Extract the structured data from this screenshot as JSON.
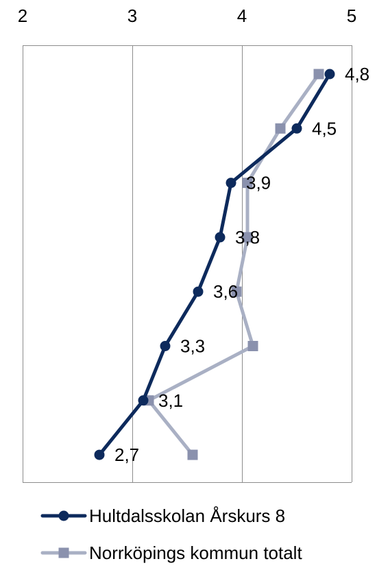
{
  "chart_data": {
    "type": "line",
    "orientation": "horizontal",
    "title": "",
    "xlabel": "",
    "ylabel": "",
    "xlim": [
      2,
      5
    ],
    "x_ticks": [
      "2",
      "3",
      "4",
      "5"
    ],
    "x_tick_values": [
      2,
      3,
      4,
      5
    ],
    "grid": true,
    "legend_position": "bottom",
    "categories_count": 8,
    "series": [
      {
        "name": "Hultdalsskolan Årskurs 8",
        "color": "#0d2a5c",
        "marker": "circle",
        "values": [
          4.8,
          4.5,
          3.9,
          3.8,
          3.6,
          3.3,
          3.1,
          2.7
        ],
        "labels": [
          "4,8",
          "4,5",
          "3,9",
          "3,8",
          "3,6",
          "3,3",
          "3,1",
          "2,7"
        ]
      },
      {
        "name": "Norrköpings kommun totalt",
        "color": "#a9b0c4",
        "marker_color": "#8a91ad",
        "marker": "square",
        "values": [
          4.7,
          4.35,
          4.05,
          4.05,
          3.95,
          4.1,
          3.15,
          3.55
        ]
      }
    ]
  }
}
